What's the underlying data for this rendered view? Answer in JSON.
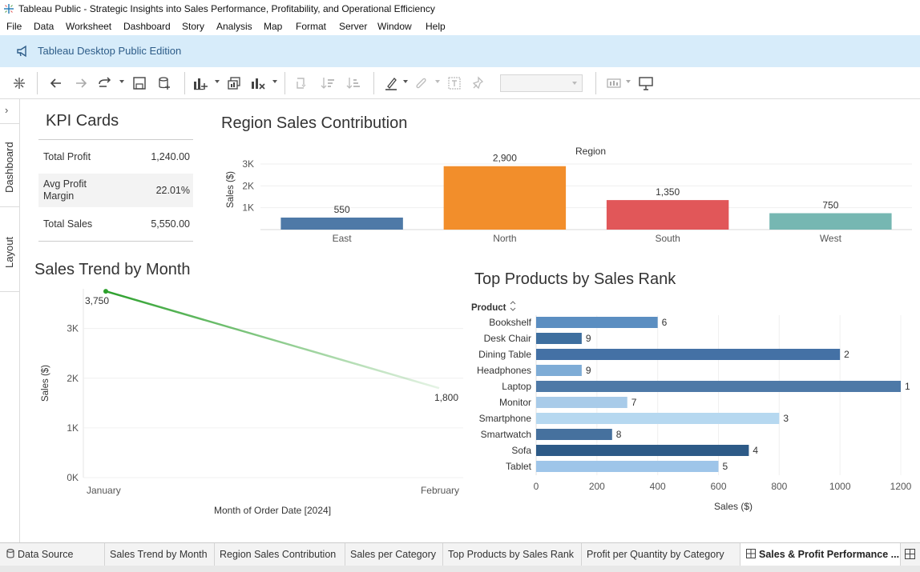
{
  "window": {
    "title": "Tableau Public - Strategic Insights into Sales Performance, Profitability, and Operational Efficiency"
  },
  "menu": [
    "File",
    "Data",
    "Worksheet",
    "Dashboard",
    "Story",
    "Analysis",
    "Map",
    "Format",
    "Server",
    "Window",
    "Help"
  ],
  "banner": {
    "text": "Tableau Desktop Public Edition"
  },
  "side_tabs": {
    "dashboard": "Dashboard",
    "layout": "Layout"
  },
  "kpi": {
    "title": "KPI Cards",
    "rows": [
      {
        "label": "Total Profit",
        "value": "1,240.00"
      },
      {
        "label": "Avg Profit Margin",
        "value": "22.01%"
      },
      {
        "label": "Total Sales",
        "value": "5,550.00"
      }
    ]
  },
  "region_chart": {
    "title": "Region Sales Contribution",
    "chart_data": {
      "type": "bar",
      "column_header": "Region",
      "ylabel": "Sales ($)",
      "categories": [
        "East",
        "North",
        "South",
        "West"
      ],
      "values": [
        550,
        2900,
        1350,
        750
      ],
      "value_labels": [
        "550",
        "2,900",
        "1,350",
        "750"
      ],
      "colors": [
        "#4e79a7",
        "#f28e2b",
        "#e15759",
        "#76b7b2"
      ],
      "y_ticks": [
        "1K",
        "2K",
        "3K"
      ],
      "ylim": [
        0,
        3000
      ]
    }
  },
  "trend_chart": {
    "title": "Sales Trend by Month",
    "chart_data": {
      "type": "line",
      "xlabel": "Month of Order Date [2024]",
      "ylabel": "Sales ($)",
      "categories": [
        "January",
        "February"
      ],
      "values": [
        3750,
        1800
      ],
      "value_labels": [
        "3,750",
        "1,800"
      ],
      "y_ticks": [
        "0K",
        "1K",
        "2K",
        "3K"
      ],
      "ylim": [
        0,
        3800
      ],
      "color": "#2ca02c"
    }
  },
  "products_chart": {
    "title": "Top Products by Sales Rank",
    "chart_data": {
      "type": "bar",
      "orientation": "horizontal",
      "row_header": "Product",
      "xlabel": "Sales ($)",
      "categories": [
        "Bookshelf",
        "Desk Chair",
        "Dining Table",
        "Headphones",
        "Laptop",
        "Monitor",
        "Smartphone",
        "Smartwatch",
        "Sofa",
        "Tablet"
      ],
      "values": [
        400,
        150,
        1000,
        150,
        1200,
        300,
        800,
        250,
        700,
        600
      ],
      "rank_labels": [
        "6",
        "9",
        "2",
        "9",
        "1",
        "7",
        "3",
        "8",
        "4",
        "5"
      ],
      "colors": [
        "#5b8ec1",
        "#3e6f9f",
        "#4471a5",
        "#7eacd6",
        "#4e79a7",
        "#a8cbe9",
        "#b6d8f0",
        "#46719e",
        "#2d5a87",
        "#9ec5e9"
      ],
      "x_ticks": [
        "0",
        "200",
        "400",
        "600",
        "800",
        "1000",
        "1200"
      ],
      "xlim": [
        0,
        1200
      ]
    }
  },
  "sheet_tabs": [
    {
      "label": "Data Source"
    },
    {
      "label": "Sales Trend by Month"
    },
    {
      "label": "Region Sales Contribution"
    },
    {
      "label": "Sales per Category"
    },
    {
      "label": "Top Products by Sales Rank"
    },
    {
      "label": "Profit per Quantity by Category"
    },
    {
      "label": "Sales & Profit Performance ..."
    }
  ]
}
